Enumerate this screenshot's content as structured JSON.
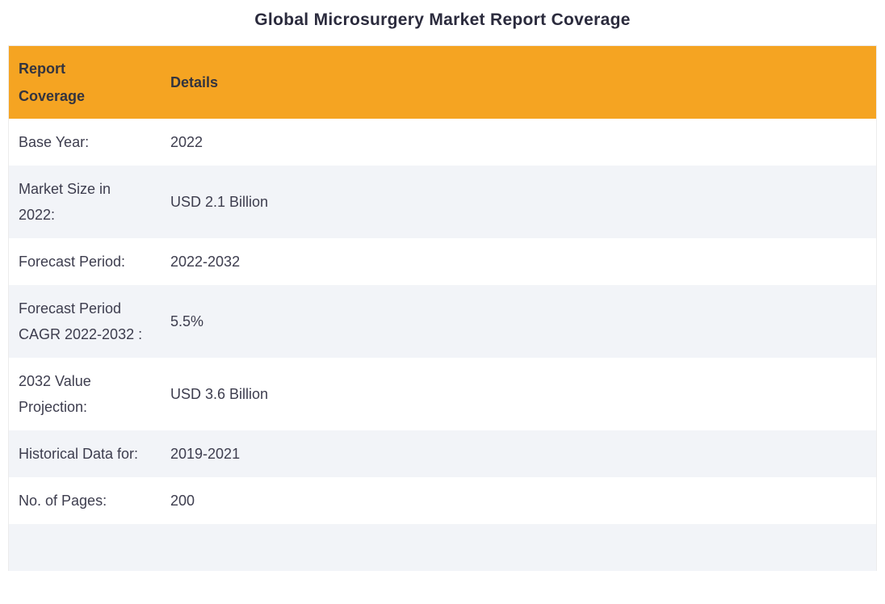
{
  "page": {
    "title": "Global Microsurgery Market Report Coverage"
  },
  "table": {
    "headers": {
      "coverage": "Report Coverage",
      "details": "Details"
    },
    "rows": [
      {
        "label": "Base Year:",
        "value": "2022"
      },
      {
        "label": "Market Size in 2022:",
        "value": "USD 2.1 Billion"
      },
      {
        "label": "Forecast Period:",
        "value": "2022-2032"
      },
      {
        "label": "Forecast Period CAGR 2022-2032 :",
        "value": "5.5%"
      },
      {
        "label": "2032 Value Projection:",
        "value": "USD 3.6 Billion"
      },
      {
        "label": "Historical Data for:",
        "value": "2019-2021"
      },
      {
        "label": "No. of Pages:",
        "value": "200"
      }
    ],
    "colors": {
      "header_bg": "#F5A422",
      "row_alt_bg": "#F2F4F8",
      "text": "#3d3d4e"
    }
  }
}
